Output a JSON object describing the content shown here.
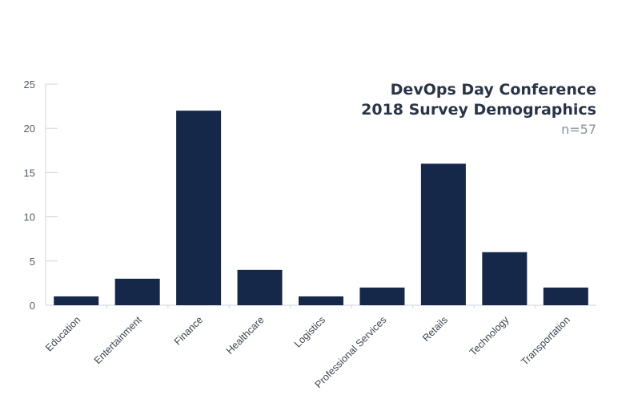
{
  "chart_data": {
    "type": "bar",
    "title_lines": [
      "DevOps Day Conference",
      "2018 Survey Demographics"
    ],
    "subtitle": "n=57",
    "categories": [
      "Education",
      "Entertainment",
      "Finance",
      "Healthcare",
      "Logistics",
      "Professional Services",
      "Retails",
      "Technology",
      "Transportation"
    ],
    "values": [
      1,
      3,
      22,
      4,
      1,
      2,
      16,
      6,
      2
    ],
    "ylim": [
      0,
      25
    ],
    "yticks": [
      0,
      5,
      10,
      15,
      20,
      25
    ],
    "xlabel": "",
    "ylabel": "",
    "grid": false,
    "legend": "none",
    "bar_color": "#15284a",
    "axis_color": "#cfd3d8"
  }
}
